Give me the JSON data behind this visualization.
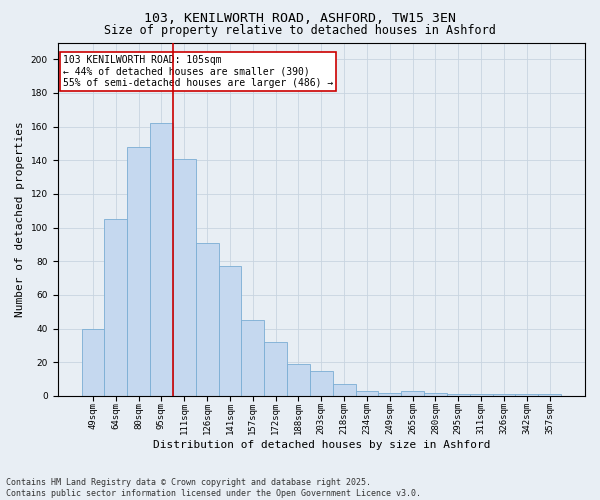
{
  "title1": "103, KENILWORTH ROAD, ASHFORD, TW15 3EN",
  "title2": "Size of property relative to detached houses in Ashford",
  "xlabel": "Distribution of detached houses by size in Ashford",
  "ylabel": "Number of detached properties",
  "categories": [
    "49sqm",
    "64sqm",
    "80sqm",
    "95sqm",
    "111sqm",
    "126sqm",
    "141sqm",
    "157sqm",
    "172sqm",
    "188sqm",
    "203sqm",
    "218sqm",
    "234sqm",
    "249sqm",
    "265sqm",
    "280sqm",
    "295sqm",
    "311sqm",
    "326sqm",
    "342sqm",
    "357sqm"
  ],
  "bar_heights": [
    40,
    105,
    148,
    162,
    141,
    91,
    77,
    45,
    32,
    19,
    15,
    7,
    3,
    2,
    3,
    2,
    1,
    1,
    1,
    1,
    1
  ],
  "bar_color": "#c5d8ef",
  "bar_edge_color": "#7aadd4",
  "vline_index": 4,
  "vline_color": "#cc0000",
  "annotation_line1": "103 KENILWORTH ROAD: 105sqm",
  "annotation_line2": "← 44% of detached houses are smaller (390)",
  "annotation_line3": "55% of semi-detached houses are larger (486) →",
  "annotation_box_facecolor": "#ffffff",
  "annotation_box_edgecolor": "#cc0000",
  "ylim": [
    0,
    210
  ],
  "yticks": [
    0,
    20,
    40,
    60,
    80,
    100,
    120,
    140,
    160,
    180,
    200
  ],
  "grid_color": "#c8d4e0",
  "background_color": "#e8eef4",
  "footer_line1": "Contains HM Land Registry data © Crown copyright and database right 2025.",
  "footer_line2": "Contains public sector information licensed under the Open Government Licence v3.0.",
  "title_fontsize": 9.5,
  "subtitle_fontsize": 8.5,
  "axis_label_fontsize": 8,
  "tick_fontsize": 6.5,
  "footer_fontsize": 6,
  "annotation_fontsize": 7
}
